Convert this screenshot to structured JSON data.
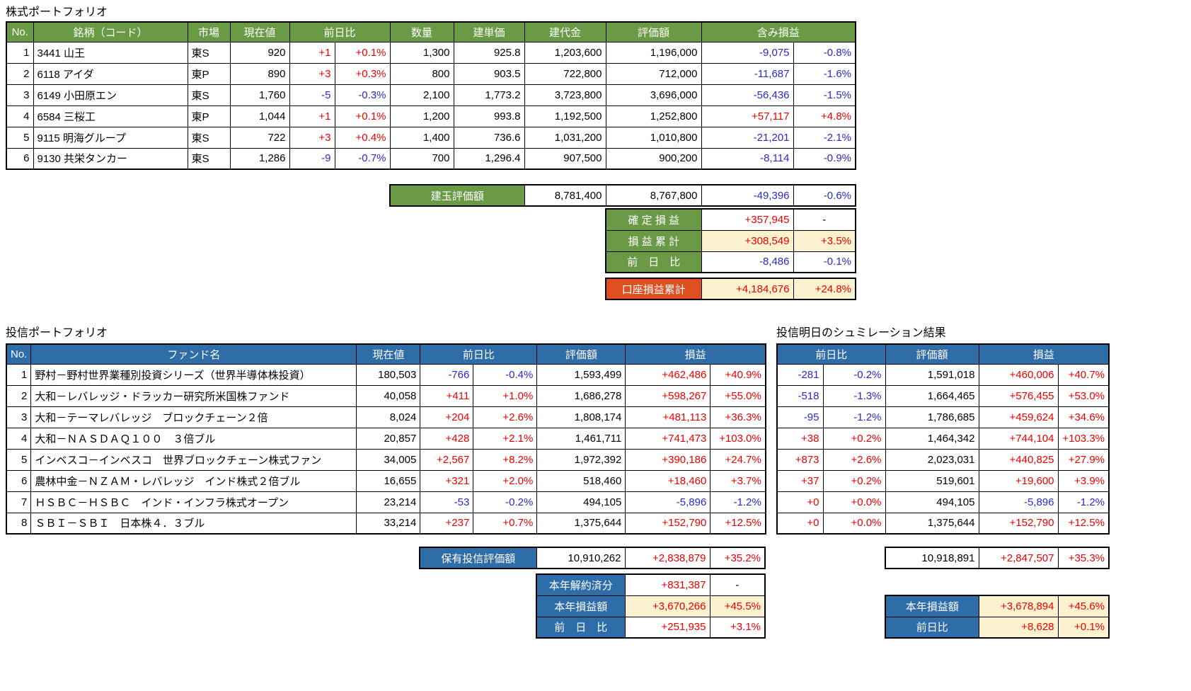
{
  "colors": {
    "green_header_bg": "#6B9A47",
    "blue_header_bg": "#2E6DA8",
    "orange_label_bg": "#E04F21",
    "highlight_bg": "#FCF2D0",
    "positive_text": "#EB0000",
    "negative_text": "#2A2AC9"
  },
  "stock": {
    "title": "株式ポートフォリオ",
    "headers": {
      "no": "No.",
      "name": "銘柄（コード）",
      "market": "市場",
      "price": "現在値",
      "day_change": "前日比",
      "qty": "数量",
      "unit_price": "建単価",
      "cost": "建代金",
      "value": "評価額",
      "pl": "含み損益"
    },
    "rows": [
      {
        "no": "1",
        "name": "3441 山王",
        "market": "東S",
        "price": "920",
        "chg": "+1",
        "chg_pct": "+0.1%",
        "qty": "1,300",
        "unit": "925.8",
        "cost": "1,203,600",
        "value": "1,196,000",
        "pl": "-9,075",
        "pl_pct": "-0.8%"
      },
      {
        "no": "2",
        "name": "6118 アイダ",
        "market": "東P",
        "price": "890",
        "chg": "+3",
        "chg_pct": "+0.3%",
        "qty": "800",
        "unit": "903.5",
        "cost": "722,800",
        "value": "712,000",
        "pl": "-11,687",
        "pl_pct": "-1.6%"
      },
      {
        "no": "3",
        "name": "6149 小田原エン",
        "market": "東S",
        "price": "1,760",
        "chg": "-5",
        "chg_pct": "-0.3%",
        "qty": "2,100",
        "unit": "1,773.2",
        "cost": "3,723,800",
        "value": "3,696,000",
        "pl": "-56,436",
        "pl_pct": "-1.5%"
      },
      {
        "no": "4",
        "name": "6584 三桜工",
        "market": "東P",
        "price": "1,044",
        "chg": "+1",
        "chg_pct": "+0.1%",
        "qty": "1,200",
        "unit": "993.8",
        "cost": "1,192,500",
        "value": "1,252,800",
        "pl": "+57,117",
        "pl_pct": "+4.8%"
      },
      {
        "no": "5",
        "name": "9115 明海グループ",
        "market": "東S",
        "price": "722",
        "chg": "+3",
        "chg_pct": "+0.4%",
        "qty": "1,400",
        "unit": "736.6",
        "cost": "1,031,200",
        "value": "1,010,800",
        "pl": "-21,201",
        "pl_pct": "-2.1%"
      },
      {
        "no": "6",
        "name": "9130 共栄タンカー",
        "market": "東S",
        "price": "1,286",
        "chg": "-9",
        "chg_pct": "-0.7%",
        "qty": "700",
        "unit": "1,296.4",
        "cost": "907,500",
        "value": "900,200",
        "pl": "-8,114",
        "pl_pct": "-0.9%"
      }
    ],
    "summary": {
      "label": "建玉評価額",
      "cost": "8,781,400",
      "value": "8,767,800",
      "pl": "-49,396",
      "pl_pct": "-0.6%"
    },
    "totals": [
      {
        "label": "確 定 損 益",
        "value": "+357,945",
        "pct": "-",
        "highlight": false
      },
      {
        "label": "損 益 累 計",
        "value": "+308,549",
        "pct": "+3.5%",
        "highlight": true
      },
      {
        "label": "前　日　比",
        "value": "-8,486",
        "pct": "-0.1%",
        "highlight": false
      }
    ],
    "account_total": {
      "label": "口座損益累計",
      "value": "+4,184,676",
      "pct": "+24.8%"
    }
  },
  "fund": {
    "title": "投信ポートフォリオ",
    "headers": {
      "no": "No.",
      "name": "ファンド名",
      "price": "現在値",
      "day_change": "前日比",
      "value": "評価額",
      "pl": "損益"
    },
    "rows": [
      {
        "no": "1",
        "name": "野村－野村世界業種別投資シリーズ（世界半導体株投資）",
        "price": "180,503",
        "chg": "-766",
        "chg_pct": "-0.4%",
        "value": "1,593,499",
        "pl": "+462,486",
        "pl_pct": "+40.9%"
      },
      {
        "no": "2",
        "name": "大和－レバレッジ・ドラッカー研究所米国株ファンド",
        "price": "40,058",
        "chg": "+411",
        "chg_pct": "+1.0%",
        "value": "1,686,278",
        "pl": "+598,267",
        "pl_pct": "+55.0%"
      },
      {
        "no": "3",
        "name": "大和－テーマレバレッジ　ブロックチェーン２倍",
        "price": "8,024",
        "chg": "+204",
        "chg_pct": "+2.6%",
        "value": "1,808,174",
        "pl": "+481,113",
        "pl_pct": "+36.3%"
      },
      {
        "no": "4",
        "name": "大和－ＮＡＳＤＡＱ１００　３倍ブル",
        "price": "20,857",
        "chg": "+428",
        "chg_pct": "+2.1%",
        "value": "1,461,711",
        "pl": "+741,473",
        "pl_pct": "+103.0%"
      },
      {
        "no": "5",
        "name": "インベスコ－インベスコ　世界ブロックチェーン株式ファン",
        "price": "34,005",
        "chg": "+2,567",
        "chg_pct": "+8.2%",
        "value": "1,972,392",
        "pl": "+390,186",
        "pl_pct": "+24.7%"
      },
      {
        "no": "6",
        "name": "農林中金－ＮＺＡＭ・レバレッジ　インド株式２倍ブル",
        "price": "16,655",
        "chg": "+321",
        "chg_pct": "+2.0%",
        "value": "518,460",
        "pl": "+18,460",
        "pl_pct": "+3.7%"
      },
      {
        "no": "7",
        "name": "ＨＳＢＣ－ＨＳＢＣ　インド・インフラ株式オープン",
        "price": "23,214",
        "chg": "-53",
        "chg_pct": "-0.2%",
        "value": "494,105",
        "pl": "-5,896",
        "pl_pct": "-1.2%"
      },
      {
        "no": "8",
        "name": "ＳＢＩ－ＳＢＩ　日本株４．３ブル",
        "price": "33,214",
        "chg": "+237",
        "chg_pct": "+0.7%",
        "value": "1,375,644",
        "pl": "+152,790",
        "pl_pct": "+12.5%"
      }
    ],
    "summary": {
      "label": "保有投信評価額",
      "value": "10,910,262",
      "pl": "+2,838,879",
      "pl_pct": "+35.2%"
    },
    "totals": [
      {
        "label": "本年解約済分",
        "value": "+831,387",
        "pct": "-",
        "highlight": false
      },
      {
        "label": "本年損益額",
        "value": "+3,670,266",
        "pct": "+45.5%",
        "highlight": true
      },
      {
        "label": "前　日　比",
        "value": "+251,935",
        "pct": "+3.1%",
        "highlight": false
      }
    ]
  },
  "simulation": {
    "title": "投信明日のシュミレーション結果",
    "headers": {
      "day_change": "前日比",
      "value": "評価額",
      "pl": "損益"
    },
    "rows": [
      {
        "chg": "-281",
        "chg_pct": "-0.2%",
        "value": "1,591,018",
        "pl": "+460,006",
        "pl_pct": "+40.7%"
      },
      {
        "chg": "-518",
        "chg_pct": "-1.3%",
        "value": "1,664,465",
        "pl": "+576,455",
        "pl_pct": "+53.0%"
      },
      {
        "chg": "-95",
        "chg_pct": "-1.2%",
        "value": "1,786,685",
        "pl": "+459,624",
        "pl_pct": "+34.6%"
      },
      {
        "chg": "+38",
        "chg_pct": "+0.2%",
        "value": "1,464,342",
        "pl": "+744,104",
        "pl_pct": "+103.3%"
      },
      {
        "chg": "+873",
        "chg_pct": "+2.6%",
        "value": "2,023,031",
        "pl": "+440,825",
        "pl_pct": "+27.9%"
      },
      {
        "chg": "+37",
        "chg_pct": "+0.2%",
        "value": "519,601",
        "pl": "+19,600",
        "pl_pct": "+3.9%"
      },
      {
        "chg": "+0",
        "chg_pct": "+0.0%",
        "value": "494,105",
        "pl": "-5,896",
        "pl_pct": "-1.2%"
      },
      {
        "chg": "+0",
        "chg_pct": "+0.0%",
        "value": "1,375,644",
        "pl": "+152,790",
        "pl_pct": "+12.5%"
      }
    ],
    "summary": {
      "value": "10,918,891",
      "pl": "+2,847,507",
      "pl_pct": "+35.3%"
    },
    "totals": [
      {
        "label": "本年損益額",
        "value": "+3,678,894",
        "pct": "+45.6%",
        "highlight": true
      },
      {
        "label": "前日比",
        "value": "+8,628",
        "pct": "+0.1%",
        "highlight": true
      }
    ]
  }
}
